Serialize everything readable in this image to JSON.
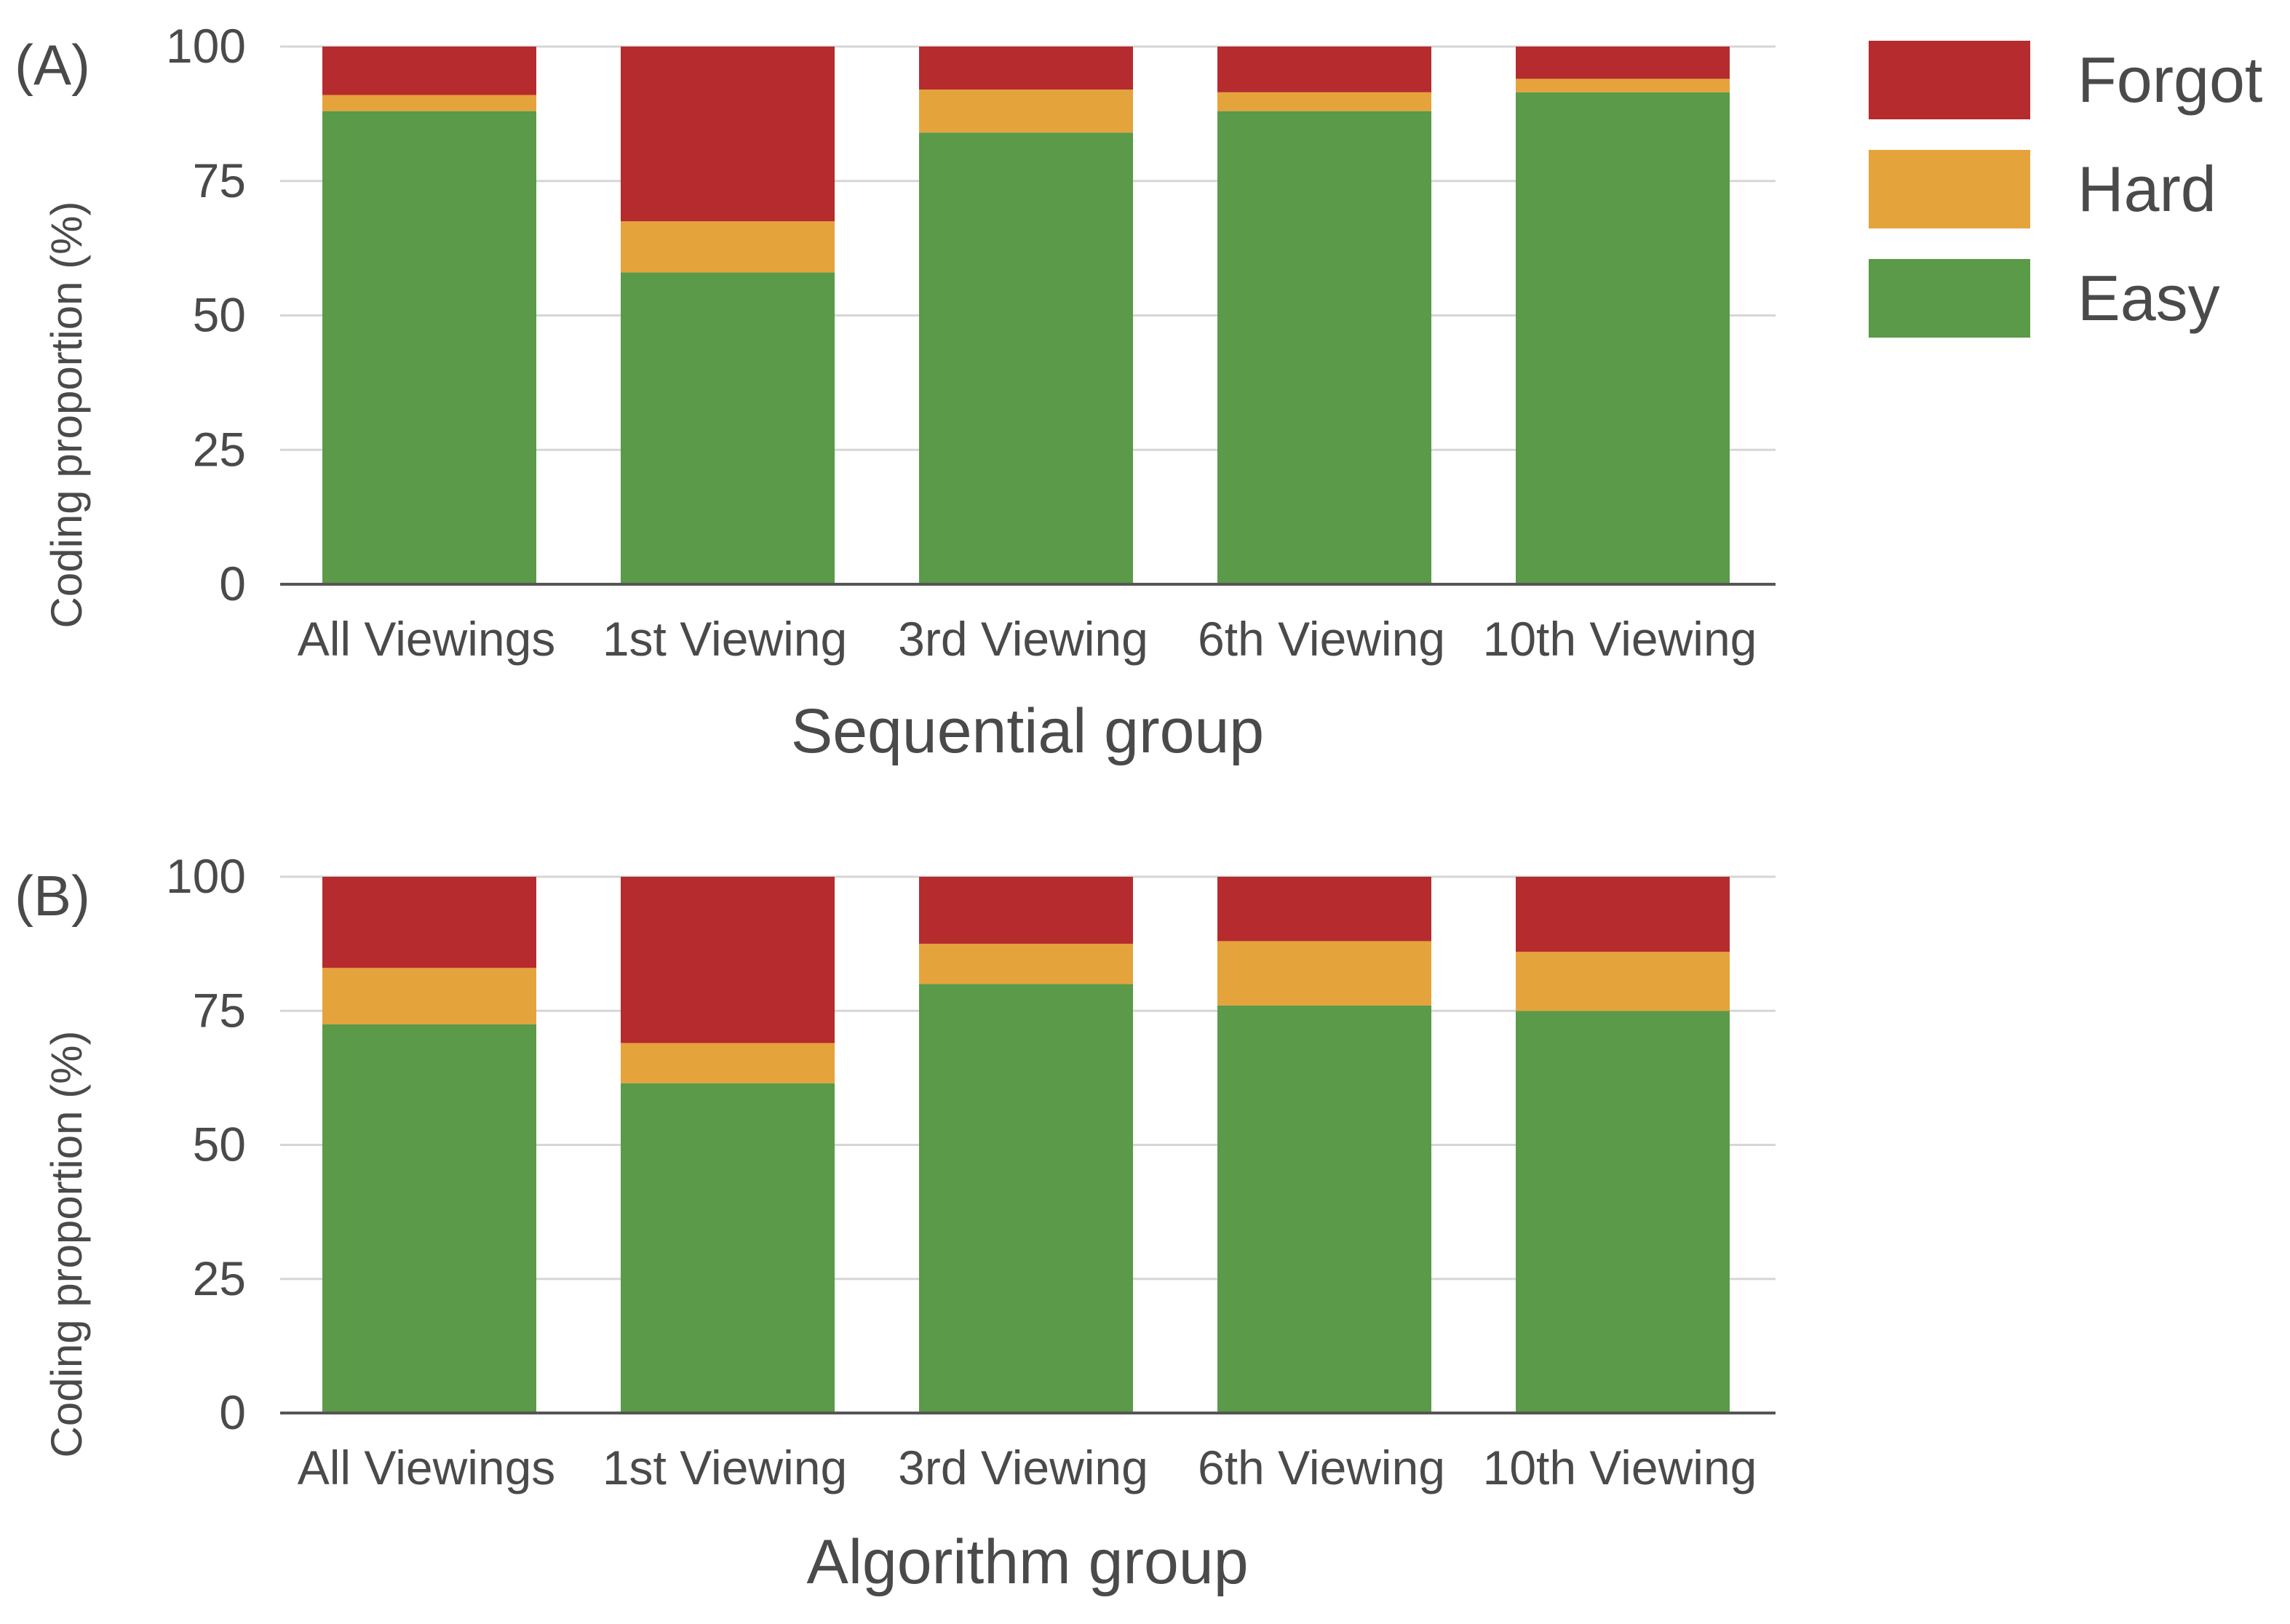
{
  "figure": {
    "legend": [
      {
        "name": "Forgot",
        "color": "#b52b2e"
      },
      {
        "name": "Hard",
        "color": "#e5a33c"
      },
      {
        "name": "Easy",
        "color": "#5a9a48"
      }
    ]
  },
  "chart_data": [
    {
      "type": "bar",
      "stacked": true,
      "panel_label": "(A)",
      "title": "",
      "xlabel": "Sequential group",
      "ylabel": "Coding proportion (%)",
      "ylim": [
        0,
        100
      ],
      "yticks": [
        "0",
        "25",
        "50",
        "75",
        "100"
      ],
      "grid": true,
      "categories": [
        "All Viewings",
        "1st Viewing",
        "3rd Viewing",
        "6th Viewing",
        "10th Viewing"
      ],
      "series": [
        {
          "name": "Easy",
          "values": [
            88,
            58,
            84,
            88,
            91.5
          ]
        },
        {
          "name": "Hard",
          "values": [
            3,
            9.5,
            8,
            3.5,
            2.5
          ]
        },
        {
          "name": "Forgot",
          "values": [
            9,
            32.5,
            8,
            8.5,
            6
          ]
        }
      ]
    },
    {
      "type": "bar",
      "stacked": true,
      "panel_label": "(B)",
      "title": "",
      "xlabel": "Algorithm group",
      "ylabel": "Coding proportion (%)",
      "ylim": [
        0,
        100
      ],
      "yticks": [
        "0",
        "25",
        "50",
        "75",
        "100"
      ],
      "grid": true,
      "categories": [
        "All Viewings",
        "1st Viewing",
        "3rd Viewing",
        "6th Viewing",
        "10th Viewing"
      ],
      "series": [
        {
          "name": "Easy",
          "values": [
            72.5,
            61.5,
            80,
            76,
            75
          ]
        },
        {
          "name": "Hard",
          "values": [
            10.5,
            7.5,
            7.5,
            12,
            11
          ]
        },
        {
          "name": "Forgot",
          "values": [
            17,
            31,
            12.5,
            12,
            14
          ]
        }
      ]
    }
  ]
}
